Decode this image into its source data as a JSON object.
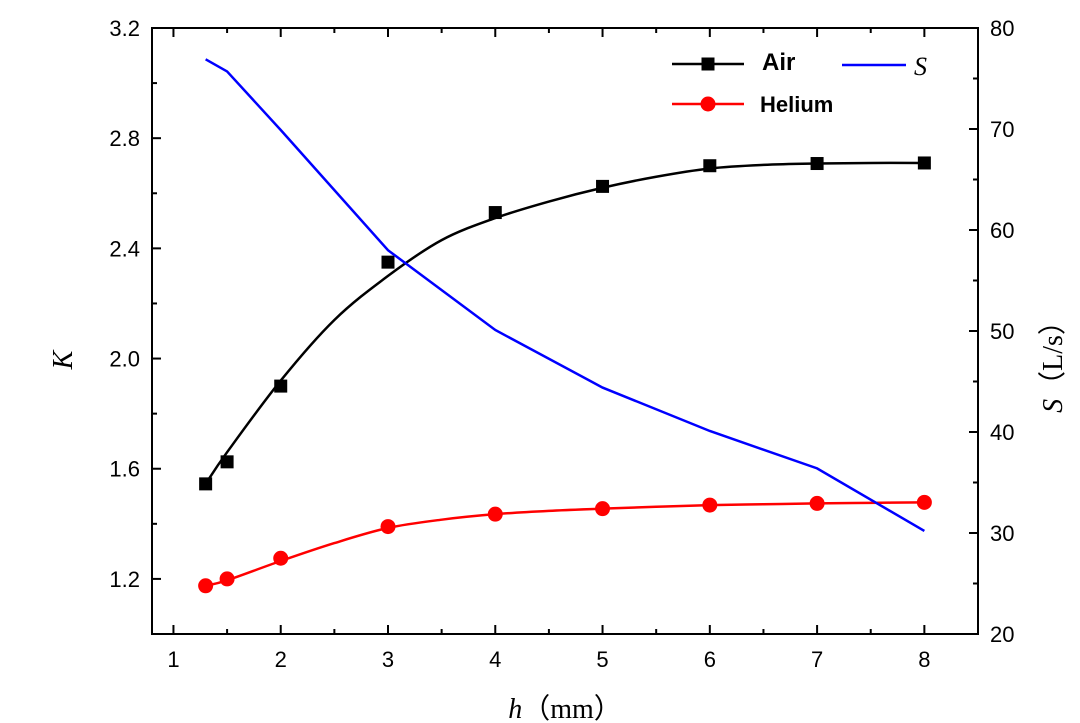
{
  "chart_data": {
    "type": "line",
    "x_axis": {
      "label_var": "h",
      "label_unit": "（mm）",
      "range": [
        0.8,
        8.5
      ],
      "ticks": [
        1,
        2,
        3,
        4,
        5,
        6,
        7,
        8
      ]
    },
    "y_axis_left": {
      "label": "K",
      "range": [
        1.0,
        3.2
      ],
      "ticks": [
        1.2,
        1.6,
        2.0,
        2.4,
        2.8,
        3.2
      ],
      "tick_labels": [
        "1.2",
        "1.6",
        "2.0",
        "2.4",
        "2.8",
        "3.2"
      ]
    },
    "y_axis_right": {
      "label_var": "S",
      "label_unit": "（L/s）",
      "range": [
        20,
        80
      ],
      "ticks": [
        20,
        30,
        40,
        50,
        60,
        70,
        80
      ]
    },
    "series": [
      {
        "name": "Air",
        "axis": "left",
        "color": "#000000",
        "marker": "square",
        "x": [
          1.3,
          1.5,
          2,
          3,
          4,
          5,
          6,
          7,
          8
        ],
        "y": [
          1.545,
          1.625,
          1.9,
          2.35,
          2.53,
          2.625,
          2.7,
          2.708,
          2.71
        ],
        "fit": [
          [
            1.3,
            1.545
          ],
          [
            1.5,
            1.66
          ],
          [
            2,
            1.92
          ],
          [
            2.5,
            2.14
          ],
          [
            3,
            2.3
          ],
          [
            3.5,
            2.43
          ],
          [
            4,
            2.51
          ],
          [
            4.5,
            2.57
          ],
          [
            5,
            2.62
          ],
          [
            5.5,
            2.66
          ],
          [
            6,
            2.69
          ],
          [
            6.5,
            2.703
          ],
          [
            7,
            2.708
          ],
          [
            7.5,
            2.71
          ],
          [
            8,
            2.71
          ]
        ]
      },
      {
        "name": "Helium",
        "axis": "left",
        "color": "#ff0000",
        "marker": "circle",
        "x": [
          1.3,
          1.5,
          2,
          3,
          4,
          5,
          6,
          7,
          8
        ],
        "y": [
          1.175,
          1.2,
          1.275,
          1.39,
          1.435,
          1.455,
          1.468,
          1.474,
          1.478
        ],
        "fit": [
          [
            1.3,
            1.175
          ],
          [
            1.5,
            1.195
          ],
          [
            2,
            1.265
          ],
          [
            2.5,
            1.33
          ],
          [
            3,
            1.385
          ],
          [
            3.5,
            1.415
          ],
          [
            4,
            1.435
          ],
          [
            4.5,
            1.447
          ],
          [
            5,
            1.455
          ],
          [
            5.5,
            1.462
          ],
          [
            6,
            1.468
          ],
          [
            6.5,
            1.471
          ],
          [
            7,
            1.474
          ],
          [
            7.5,
            1.476
          ],
          [
            8,
            1.478
          ]
        ]
      },
      {
        "name": "S",
        "axis": "right",
        "color": "#0000ff",
        "marker": "none",
        "x": [
          1.3,
          1.5,
          2,
          3,
          4,
          5,
          6,
          7,
          8
        ],
        "y": [
          76.9,
          75.7,
          69.9,
          58.0,
          50.1,
          44.4,
          40.1,
          36.4,
          30.2
        ]
      }
    ],
    "legend_position": "top-right",
    "grid": false
  }
}
